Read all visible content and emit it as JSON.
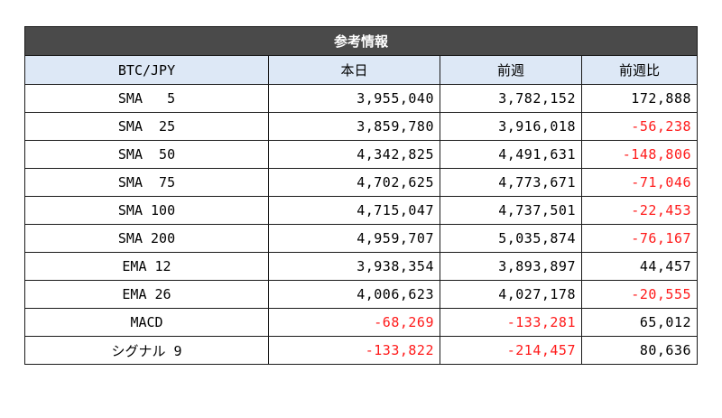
{
  "table": {
    "title": "参考情報",
    "headers": [
      "BTC/JPY",
      "本日",
      "前週",
      "前週比"
    ],
    "rows": [
      {
        "label": "SMA   5",
        "today": "3,955,040",
        "last_week": "3,782,152",
        "change": "172,888",
        "neg": [
          false,
          false,
          false
        ]
      },
      {
        "label": "SMA  25",
        "today": "3,859,780",
        "last_week": "3,916,018",
        "change": "-56,238",
        "neg": [
          false,
          false,
          true
        ]
      },
      {
        "label": "SMA  50",
        "today": "4,342,825",
        "last_week": "4,491,631",
        "change": "-148,806",
        "neg": [
          false,
          false,
          true
        ]
      },
      {
        "label": "SMA  75",
        "today": "4,702,625",
        "last_week": "4,773,671",
        "change": "-71,046",
        "neg": [
          false,
          false,
          true
        ]
      },
      {
        "label": "SMA 100",
        "today": "4,715,047",
        "last_week": "4,737,501",
        "change": "-22,453",
        "neg": [
          false,
          false,
          true
        ]
      },
      {
        "label": "SMA 200",
        "today": "4,959,707",
        "last_week": "5,035,874",
        "change": "-76,167",
        "neg": [
          false,
          false,
          true
        ]
      },
      {
        "label": "EMA 12",
        "today": "3,938,354",
        "last_week": "3,893,897",
        "change": "44,457",
        "neg": [
          false,
          false,
          false
        ]
      },
      {
        "label": "EMA 26",
        "today": "4,006,623",
        "last_week": "4,027,178",
        "change": "-20,555",
        "neg": [
          false,
          false,
          true
        ]
      },
      {
        "label": "MACD",
        "today": "-68,269",
        "last_week": "-133,281",
        "change": "65,012",
        "neg": [
          true,
          true,
          false
        ]
      },
      {
        "label": "シグナル 9",
        "today": "-133,822",
        "last_week": "-214,457",
        "change": "80,636",
        "neg": [
          true,
          true,
          false
        ]
      }
    ],
    "colors": {
      "title_bg": "#4a4a4a",
      "header_bg": "#dde8f6",
      "negative": "#ff1a1a"
    }
  }
}
